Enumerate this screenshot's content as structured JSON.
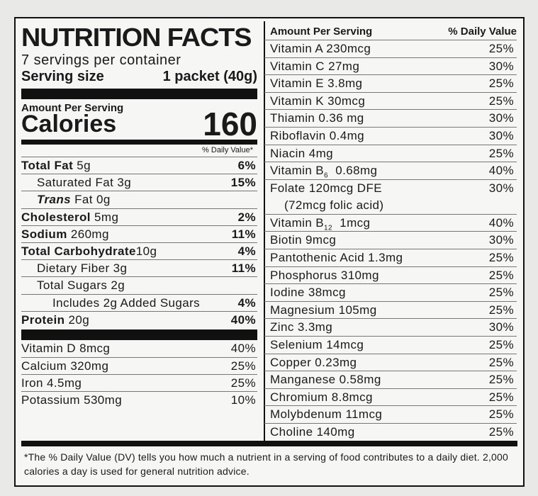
{
  "header": {
    "title": "NUTRITION FACTS",
    "servings": "7 servings per container",
    "serving_size_label": "Serving size",
    "serving_size_value": "1 packet (40g)"
  },
  "calories": {
    "amount_per_serving": "Amount Per Serving",
    "label": "Calories",
    "value": "160",
    "dv_header": "% Daily Value*"
  },
  "macros": [
    {
      "label": "Total Fat",
      "amount": "5g",
      "dv": "6%"
    },
    {
      "label": "Saturated Fat",
      "amount": "3g",
      "dv": "15%"
    },
    {
      "label": "Trans",
      "label_suffix": "Fat 0g"
    },
    {
      "label": "Cholesterol",
      "amount": "5mg",
      "dv": "2%"
    },
    {
      "label": "Sodium",
      "amount": "260mg",
      "dv": "11%"
    },
    {
      "label": "Total Carbohydrate",
      "amount": "10g",
      "dv": "4%"
    },
    {
      "label": "Dietary Fiber",
      "amount": "3g",
      "dv": "11%"
    },
    {
      "label": "Total Sugars",
      "amount": "2g"
    },
    {
      "label": "Includes 2g Added Sugars",
      "dv": "4%"
    },
    {
      "label": "Protein",
      "amount": "20g",
      "dv": "40%"
    }
  ],
  "left_vitamins": [
    {
      "label": "Vitamin D 8mcg",
      "dv": "40%"
    },
    {
      "label": "Calcium 320mg",
      "dv": "25%"
    },
    {
      "label": "Iron 4.5mg",
      "dv": "25%"
    },
    {
      "label": "Potassium 530mg",
      "dv": "10%"
    }
  ],
  "right": {
    "header_label": "Amount Per Serving",
    "header_dv": "% Daily Value",
    "items": [
      {
        "label": "Vitamin A  230mcg",
        "dv": "25%"
      },
      {
        "label": "Vitamin C  27mg",
        "dv": "30%"
      },
      {
        "label": "Vitamin E  3.8mg",
        "dv": "25%"
      },
      {
        "label": "Vitamin K  30mcg",
        "dv": "25%"
      },
      {
        "label": "Thiamin  0.36 mg",
        "dv": "30%"
      },
      {
        "label": "Riboflavin  0.4mg",
        "dv": "30%"
      },
      {
        "label": "Niacin  4mg",
        "dv": "25%"
      },
      {
        "label": "Vitamin B",
        "sub": "6",
        "suffix": "  0.68mg",
        "dv": "40%"
      },
      {
        "label": "Folate  120mcg DFE",
        "line2": "(72mcg folic acid)",
        "dv": "30%"
      },
      {
        "label": "Vitamin B",
        "sub": "12",
        "suffix": "  1mcg",
        "dv": "40%"
      },
      {
        "label": "Biotin  9mcg",
        "dv": "30%"
      },
      {
        "label": "Pantothenic Acid  1.3mg",
        "dv": "25%"
      },
      {
        "label": "Phosphorus  310mg",
        "dv": "25%"
      },
      {
        "label": "Iodine  38mcg",
        "dv": "25%"
      },
      {
        "label": "Magnesium  105mg",
        "dv": "25%"
      },
      {
        "label": "Zinc  3.3mg",
        "dv": "30%"
      },
      {
        "label": "Selenium  14mcg",
        "dv": "25%"
      },
      {
        "label": "Copper  0.23mg",
        "dv": "25%"
      },
      {
        "label": "Manganese  0.58mg",
        "dv": "25%"
      },
      {
        "label": "Chromium  8.8mcg",
        "dv": "25%"
      },
      {
        "label": "Molybdenum  11mcg",
        "dv": "25%"
      },
      {
        "label": "Choline  140mg",
        "dv": "25%"
      }
    ]
  },
  "footnote": "*The % Daily Value (DV) tells you how much a nutrient in a serving of food contributes to a daily diet. 2,000 calories a day is used for general nutrition advice."
}
